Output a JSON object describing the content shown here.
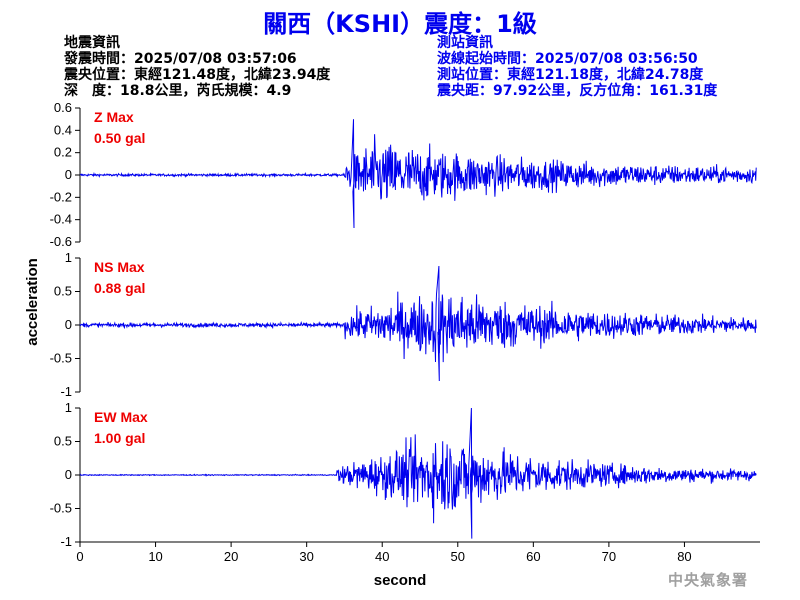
{
  "title": "關西（KSHI）震度：1級",
  "quake_info": {
    "heading": "地震資訊",
    "time": "發震時間：2025/07/08 03:57:06",
    "epicenter": "震央位置：東經121.48度，北緯23.94度",
    "depth_mag": "深　度：18.8公里，芮氏規模：4.9"
  },
  "station_info": {
    "heading": "測站資訊",
    "wave_start": "波線起始時間：2025/07/08 03:56:50",
    "location": "測站位置：東經121.18度，北緯24.78度",
    "distance": "震央距：97.92公里，反方位角：161.31度"
  },
  "agency": "中央氣象署",
  "colors": {
    "trace": "#0000ee",
    "title": "#0000ee",
    "max_label": "#ee0000"
  },
  "chart_data": [
    {
      "type": "line",
      "panel": "Z",
      "max_label": "Z Max",
      "max_value": "0.50 gal",
      "ylim": [
        -0.6,
        0.6
      ],
      "yticks": [
        "0.6",
        "0.4",
        "0.2",
        "0",
        "-0.2",
        "-0.4",
        "-0.6"
      ],
      "yvalues": [
        0.6,
        0.4,
        0.2,
        0,
        -0.2,
        -0.4,
        -0.6
      ],
      "xlim": [
        0,
        90
      ],
      "peak": 0.5,
      "pre_noise": 0.012,
      "onset_s": 35
    },
    {
      "type": "line",
      "panel": "NS",
      "max_label": "NS Max",
      "max_value": "0.88 gal",
      "ylim": [
        -1,
        1
      ],
      "yticks": [
        "1",
        "0.5",
        "0",
        "-0.5",
        "-1"
      ],
      "yvalues": [
        1,
        0.5,
        0,
        -0.5,
        -1
      ],
      "xlim": [
        0,
        90
      ],
      "peak": 0.88,
      "pre_noise": 0.035,
      "onset_s": 35
    },
    {
      "type": "line",
      "panel": "EW",
      "max_label": "EW Max",
      "max_value": "1.00 gal",
      "ylim": [
        -1,
        1
      ],
      "yticks": [
        "1",
        "0.5",
        "0",
        "-0.5",
        "-1"
      ],
      "yvalues": [
        1,
        0.5,
        0,
        -0.5,
        -1
      ],
      "xlim": [
        0,
        90
      ],
      "peak": 1.0,
      "pre_noise": 0.008,
      "onset_s": 34
    }
  ],
  "x_axis": {
    "label": "second",
    "ticks": [
      "0",
      "10",
      "20",
      "30",
      "40",
      "50",
      "60",
      "70",
      "80"
    ],
    "values": [
      0,
      10,
      20,
      30,
      40,
      50,
      60,
      70,
      80
    ]
  },
  "y_axis": {
    "label": "acceleration"
  }
}
